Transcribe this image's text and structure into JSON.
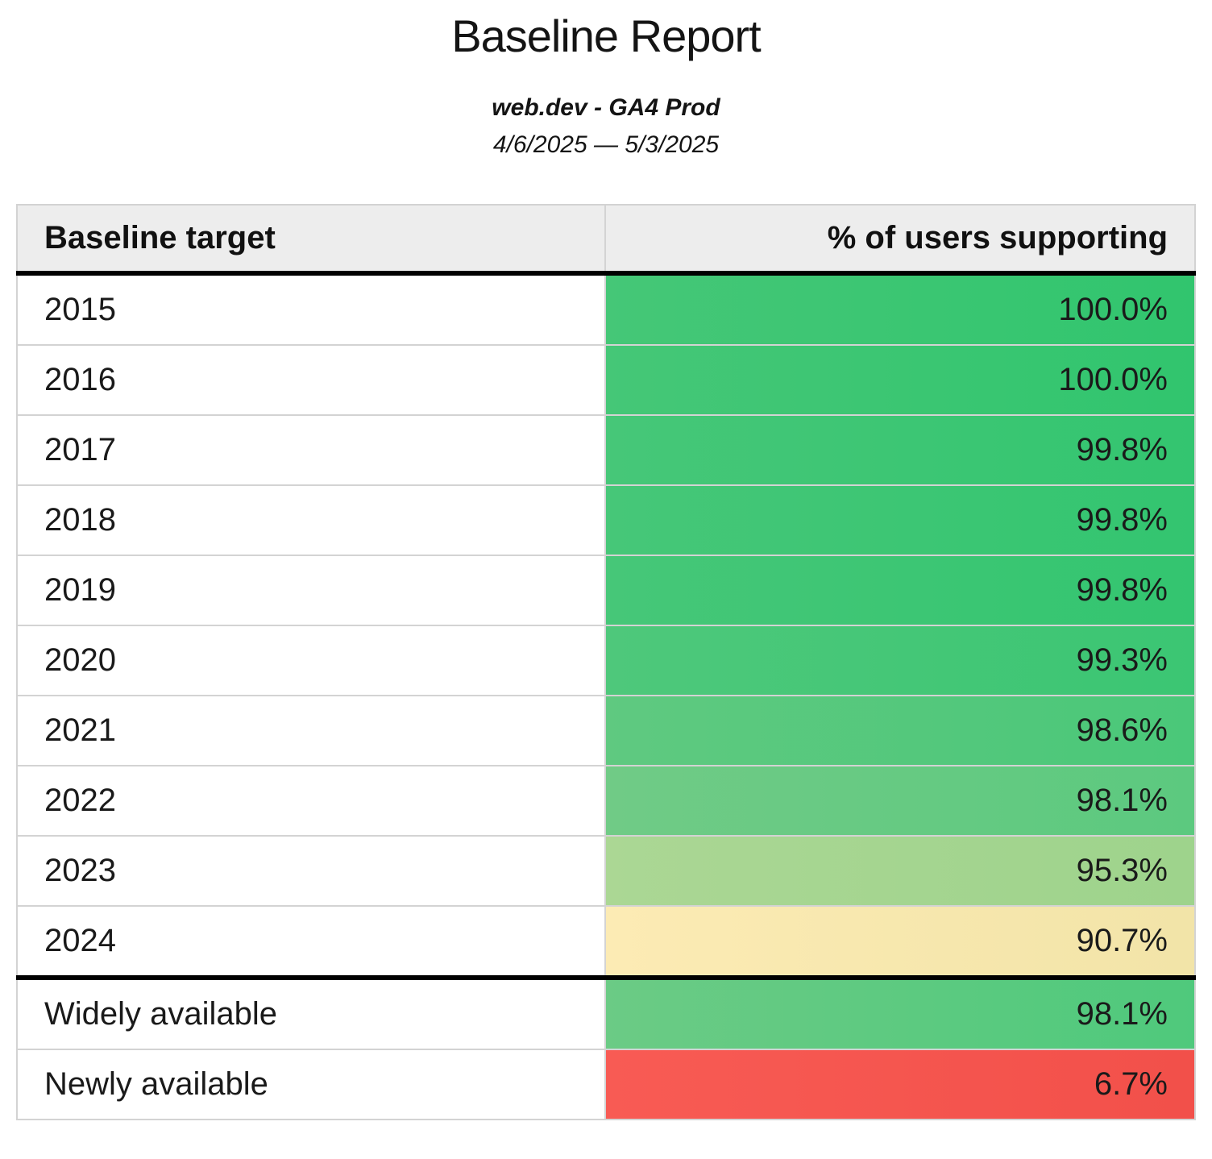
{
  "header": {
    "title": "Baseline Report",
    "property": "web.dev - GA4 Prod",
    "date_range": "4/6/2025 — 5/3/2025"
  },
  "table": {
    "columns": [
      "Baseline target",
      "% of users supporting"
    ],
    "year_rows": [
      {
        "label": "2015",
        "value": "100.0%",
        "cell_style": "background:linear-gradient(90deg,#45c777,#31c56e)"
      },
      {
        "label": "2016",
        "value": "100.0%",
        "cell_style": "background:linear-gradient(90deg,#45c777,#31c56e)"
      },
      {
        "label": "2017",
        "value": "99.8%",
        "cell_style": "background:linear-gradient(90deg,#46c778,#33c570)"
      },
      {
        "label": "2018",
        "value": "99.8%",
        "cell_style": "background:linear-gradient(90deg,#46c778,#33c570)"
      },
      {
        "label": "2019",
        "value": "99.8%",
        "cell_style": "background:linear-gradient(90deg,#46c778,#33c570)"
      },
      {
        "label": "2020",
        "value": "99.3%",
        "cell_style": "background:linear-gradient(90deg,#4ec87b,#3bc673)"
      },
      {
        "label": "2021",
        "value": "98.6%",
        "cell_style": "background:linear-gradient(90deg,#5fc980,#4ac879)"
      },
      {
        "label": "2022",
        "value": "98.1%",
        "cell_style": "background:linear-gradient(90deg,#70cb86,#5cc97f)"
      },
      {
        "label": "2023",
        "value": "95.3%",
        "cell_style": "background:linear-gradient(90deg,#abd794,#9ed38c)"
      },
      {
        "label": "2024",
        "value": "90.7%",
        "cell_style": "background:linear-gradient(90deg,#fcebb4,#f2e4a8)"
      }
    ],
    "summary_rows": [
      {
        "label": "Widely available",
        "value": "98.1%",
        "cell_style": "background:linear-gradient(90deg,#6bcb85,#4fc97c)"
      },
      {
        "label": "Newly available",
        "value": "6.7%",
        "cell_style": "background:linear-gradient(90deg,#f85b54,#f2504a)"
      }
    ],
    "palette": {
      "header_background": "#ededed",
      "grid_line": "#d3d3d3",
      "section_divider": "#000000",
      "green_high": "#35c571",
      "green_light": "#a5d691",
      "yellow_mid": "#f5e7ae",
      "red_low": "#f4544d"
    }
  },
  "chart_data": {
    "type": "table",
    "title": "Baseline Report",
    "subtitle": "web.dev - GA4 Prod",
    "date_range": "4/6/2025 — 5/3/2025",
    "columns": [
      "Baseline target",
      "% of users supporting"
    ],
    "categories": [
      "2015",
      "2016",
      "2017",
      "2018",
      "2019",
      "2020",
      "2021",
      "2022",
      "2023",
      "2024",
      "Widely available",
      "Newly available"
    ],
    "values": [
      100.0,
      100.0,
      99.8,
      99.8,
      99.8,
      99.3,
      98.6,
      98.1,
      95.3,
      90.7,
      98.1,
      6.7
    ],
    "value_format": "percent",
    "conditional_format": "red-yellow-green color scale on value column",
    "color_scale": {
      "high": "#35c571",
      "mid": "#f5e7ae",
      "low": "#f4544d"
    }
  }
}
